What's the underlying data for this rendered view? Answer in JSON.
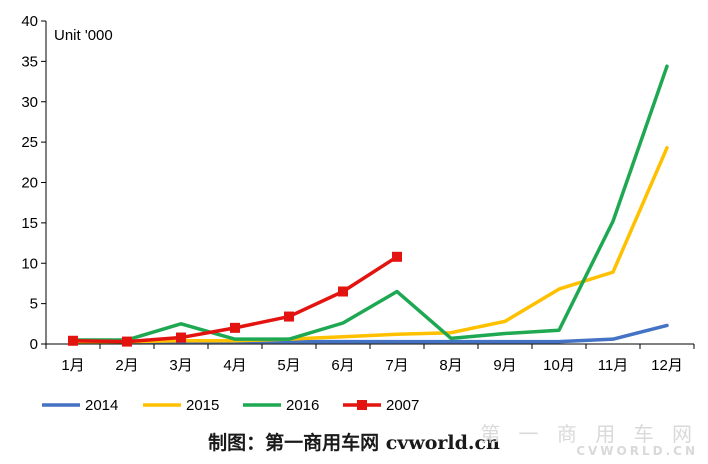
{
  "chart_data": {
    "type": "line",
    "unit_label": "Unit '000",
    "categories": [
      "1月",
      "2月",
      "3月",
      "4月",
      "5月",
      "6月",
      "7月",
      "8月",
      "9月",
      "10月",
      "11月",
      "12月"
    ],
    "ylim": [
      0,
      40
    ],
    "yticks": [
      0,
      5,
      10,
      15,
      20,
      25,
      30,
      35,
      40
    ],
    "grid": false,
    "legend_position": "bottom-left",
    "series": [
      {
        "name": "2014",
        "color": "#4472C4",
        "marker": "none",
        "values": [
          0.3,
          0.3,
          0.3,
          0.3,
          0.3,
          0.3,
          0.3,
          0.3,
          0.3,
          0.3,
          0.6,
          2.3
        ]
      },
      {
        "name": "2015",
        "color": "#FFC000",
        "marker": "none",
        "values": [
          0.3,
          0.3,
          0.4,
          0.4,
          0.6,
          0.9,
          1.2,
          1.4,
          2.8,
          6.8,
          8.9,
          24.3
        ]
      },
      {
        "name": "2016",
        "color": "#1EA852",
        "marker": "none",
        "values": [
          0.5,
          0.5,
          2.5,
          0.6,
          0.6,
          2.6,
          6.5,
          0.7,
          1.3,
          1.7,
          15.2,
          34.4
        ]
      },
      {
        "name": "2007",
        "color": "#E3130F",
        "marker": "square",
        "values": [
          0.4,
          0.3,
          0.8,
          2.0,
          3.4,
          6.5,
          10.8,
          null,
          null,
          null,
          null,
          null
        ]
      }
    ]
  },
  "caption": "制图：第一商用车网 cvworld.cn",
  "watermark": {
    "top": "第 一 商 用 车 网",
    "bottom": "CVWORLD.CN"
  }
}
